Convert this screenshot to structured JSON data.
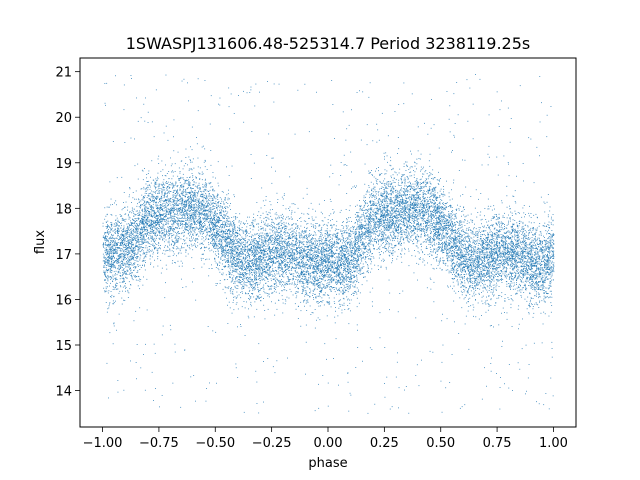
{
  "chart_data": {
    "type": "scatter",
    "title": "1SWASPJ131606.48-525314.7 Period 3238119.25s",
    "xlabel": "phase",
    "ylabel": "flux",
    "xlim": [
      -1.1,
      1.1
    ],
    "ylim": [
      13.2,
      21.3
    ],
    "x_ticks": [
      -1.0,
      -0.75,
      -0.5,
      -0.25,
      0.0,
      0.25,
      0.5,
      0.75,
      1.0
    ],
    "x_tick_labels": [
      "−1.00",
      "−0.75",
      "−0.50",
      "−0.25",
      "0.00",
      "0.25",
      "0.50",
      "0.75",
      "1.00"
    ],
    "y_ticks": [
      14,
      15,
      16,
      17,
      18,
      19,
      20,
      21
    ],
    "y_tick_labels": [
      "14",
      "15",
      "16",
      "17",
      "18",
      "19",
      "20",
      "21"
    ],
    "grid": false,
    "legend": "none",
    "marker_color": "#1f77b4",
    "series": [
      {
        "phase_range": [
          -1.0,
          1.0
        ],
        "approx_point_count": 16000,
        "flux_profile": {
          "phase": [
            -1.0,
            -0.95,
            -0.9,
            -0.85,
            -0.8,
            -0.75,
            -0.7,
            -0.65,
            -0.6,
            -0.55,
            -0.5,
            -0.45,
            -0.4,
            -0.35,
            -0.3,
            -0.25,
            -0.2,
            -0.15,
            -0.1,
            -0.05,
            0.0,
            0.05,
            0.1,
            0.15,
            0.2,
            0.25,
            0.3,
            0.35,
            0.4,
            0.45,
            0.5,
            0.55,
            0.6,
            0.65,
            0.7,
            0.75,
            0.8,
            0.85,
            0.9,
            0.95,
            1.0
          ],
          "median_flux": [
            17.0,
            17.0,
            17.1,
            17.3,
            17.8,
            17.9,
            17.9,
            18.0,
            18.0,
            17.9,
            17.6,
            17.3,
            16.9,
            16.8,
            16.9,
            17.0,
            17.1,
            17.0,
            16.8,
            16.8,
            16.9,
            16.8,
            16.9,
            17.3,
            17.8,
            17.9,
            17.9,
            18.0,
            18.0,
            17.9,
            17.6,
            17.3,
            16.9,
            16.8,
            16.9,
            17.0,
            17.1,
            17.0,
            16.8,
            16.8,
            17.0
          ],
          "scatter_half_width": 0.8
        }
      }
    ]
  }
}
